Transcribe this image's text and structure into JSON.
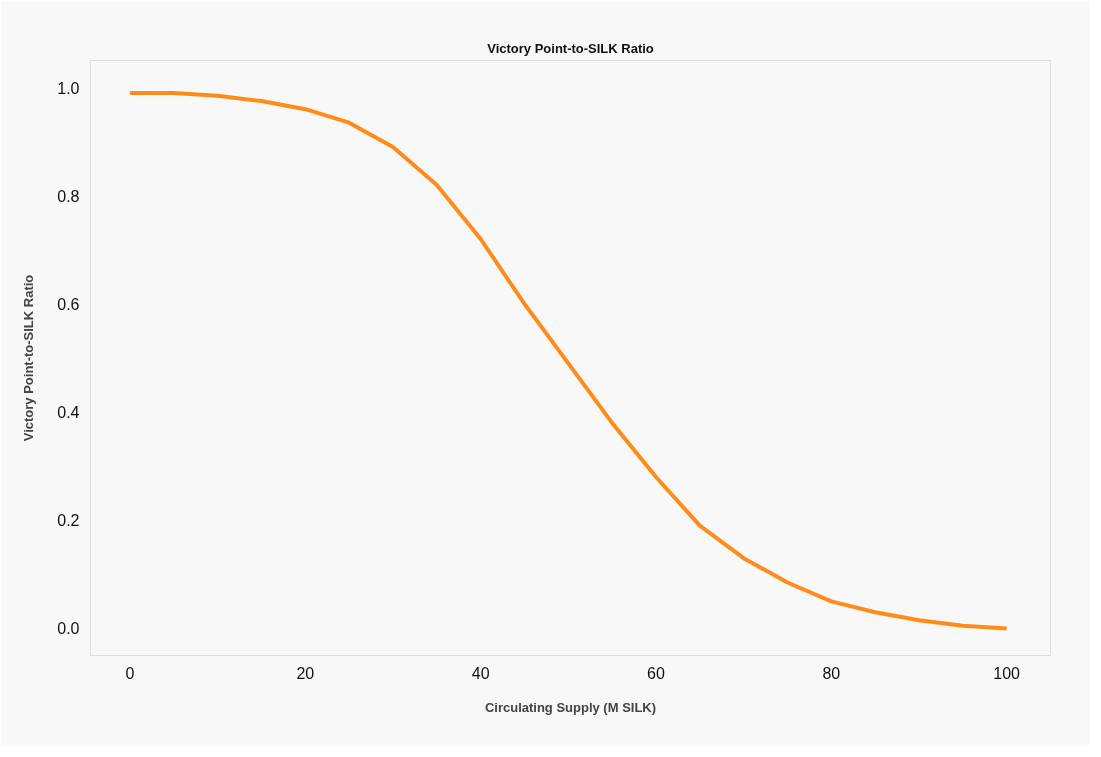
{
  "chart_data": {
    "type": "line",
    "title": "Victory Point-to-SILK Ratio",
    "xlabel": "Circulating Supply (M SILK)",
    "ylabel": "Victory Point-to-SILK Ratio",
    "x": [
      0,
      5,
      10,
      15,
      20,
      25,
      30,
      35,
      40,
      45,
      50,
      55,
      60,
      65,
      70,
      75,
      80,
      85,
      90,
      95,
      100
    ],
    "series": [
      {
        "color": "#ff8c1a",
        "values": [
          0.99,
          0.99,
          0.985,
          0.975,
          0.96,
          0.935,
          0.89,
          0.82,
          0.72,
          0.6,
          0.49,
          0.38,
          0.28,
          0.19,
          0.13,
          0.085,
          0.05,
          0.03,
          0.015,
          0.005,
          0.0
        ]
      }
    ],
    "xlim": [
      -4.5,
      105
    ],
    "ylim": [
      -0.05,
      1.05
    ],
    "xticks": [
      0,
      20,
      40,
      60,
      80,
      100
    ],
    "yticks": [
      {
        "value": 0,
        "label": "0.0"
      },
      {
        "value": 0.2,
        "label": "0.2"
      },
      {
        "value": 0.4,
        "label": "0.4"
      },
      {
        "value": 0.6,
        "label": "0.6"
      },
      {
        "value": 0.8,
        "label": "0.8"
      },
      {
        "value": 1,
        "label": "1.0"
      }
    ],
    "grid": false,
    "line_style": "solid"
  }
}
